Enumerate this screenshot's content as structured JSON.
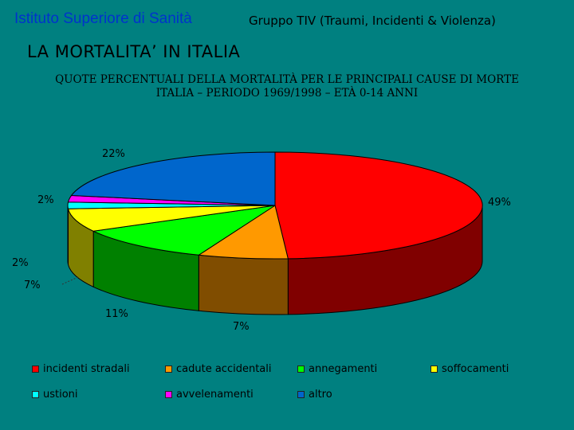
{
  "header": {
    "organization": "Istituto Superiore di Sanità",
    "group": "Gruppo TIV (Traumi, Incidenti & Violenza)"
  },
  "chart_data": {
    "type": "pie",
    "title": "LA MORTALITA’ IN ITALIA",
    "subtitle_lines": [
      "QUOTE PERCENTUALI DELLA MORTALITÀ PER LE PRINCIPALI CAUSE DI MORTE",
      "ITALIA – PERIODO 1969/1998 – ETÀ 0-14 ANNI"
    ],
    "slices": [
      {
        "label": "incidenti stradali",
        "value": 49,
        "display": "49%",
        "color": "#ff0000",
        "side_color": "#800000"
      },
      {
        "label": "cadute accidentali",
        "value": 7,
        "display": "7%",
        "color": "#ff9900",
        "side_color": "#804d00"
      },
      {
        "label": "annegamenti",
        "value": 11,
        "display": "11%",
        "color": "#00ff00",
        "side_color": "#008000"
      },
      {
        "label": "soffocamenti",
        "value": 7,
        "display": "7%",
        "color": "#ffff00",
        "side_color": "#808000"
      },
      {
        "label": "ustioni",
        "value": 2,
        "display": "2%",
        "color": "#00ffff",
        "side_color": "#008080"
      },
      {
        "label": "avvelenamenti",
        "value": 2,
        "display": "2%",
        "color": "#ff00ff",
        "side_color": "#800080"
      },
      {
        "label": "altro",
        "value": 22,
        "display": "22%",
        "color": "#0066cc",
        "side_color": "#003366"
      }
    ],
    "legend_position": "bottom"
  }
}
